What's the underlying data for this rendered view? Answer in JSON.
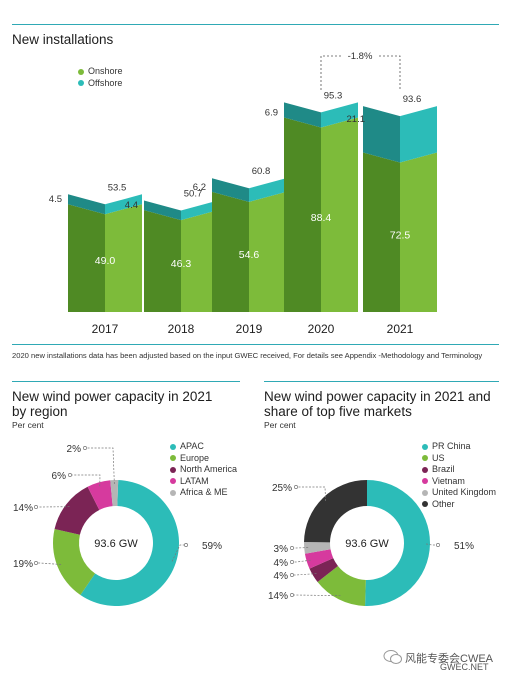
{
  "top_chart": {
    "title": "New installations",
    "legend": [
      {
        "label": "Onshore",
        "color": "#7dbb3a"
      },
      {
        "label": "Offshore",
        "color": "#2cbcb8"
      }
    ],
    "change_label": "-1.8%",
    "footnote": "2020 new installations data has been adjusted based on the input GWEC received, For details see Appendix -Methodology and Terminology"
  },
  "donut_left": {
    "title_line1": "New wind power capacity in 2021",
    "title_line2": "by region",
    "subtitle": "Per cent",
    "center_label": "93.6 GW"
  },
  "donut_right": {
    "title_line1": "New wind power capacity in 2021 and",
    "title_line2": "share of top five markets",
    "subtitle": "Per cent",
    "center_label": "93.6 GW"
  },
  "watermark": {
    "text1": "风能专委会CWEA",
    "text2": "GWEC.NET"
  },
  "chart_data": [
    {
      "type": "bar",
      "stacked": true,
      "categories": [
        "2017",
        "2018",
        "2019",
        "2020",
        "2021"
      ],
      "series": [
        {
          "name": "Onshore",
          "values": [
            49.0,
            46.3,
            54.6,
            88.4,
            72.5
          ],
          "color": "#7dbb3a"
        },
        {
          "name": "Offshore",
          "values": [
            4.5,
            4.4,
            6.2,
            6.9,
            21.1
          ],
          "color": "#2cbcb8"
        }
      ],
      "totals": [
        53.5,
        50.7,
        60.8,
        95.3,
        93.6
      ],
      "onshore_labels": [
        "49.0",
        "46.3",
        "54.6",
        "88.4",
        "72.5"
      ],
      "offshore_labels": [
        "4.5",
        "4.4",
        "6.2",
        "6.9",
        "21.1"
      ],
      "total_labels": [
        "53.5",
        "50.7",
        "60.8",
        "95.3",
        "93.6"
      ],
      "title": "New installations"
    },
    {
      "type": "pie",
      "donut": true,
      "title": "New wind power capacity in 2021 by region",
      "categories": [
        "APAC",
        "Europe",
        "North America",
        "LATAM",
        "Africa & ME"
      ],
      "values": [
        59,
        19,
        14,
        6,
        2
      ],
      "value_labels": [
        "59%",
        "19%",
        "14%",
        "6%",
        "2%"
      ],
      "colors": [
        "#2cbcb8",
        "#7dbb3a",
        "#7b2455",
        "#d63a9e",
        "#b5b5b5"
      ],
      "center_label": "93.6 GW"
    },
    {
      "type": "pie",
      "donut": true,
      "title": "New wind power capacity in 2021 and share of top five markets",
      "categories": [
        "PR China",
        "US",
        "Brazil",
        "Vietnam",
        "United Kingdom",
        "Other"
      ],
      "values": [
        51,
        14,
        4,
        4,
        3,
        25
      ],
      "value_labels": [
        "51%",
        "14%",
        "4%",
        "4%",
        "3%",
        "25%"
      ],
      "colors": [
        "#2cbcb8",
        "#7dbb3a",
        "#7b2455",
        "#d63a9e",
        "#b5b5b5",
        "#333333"
      ],
      "center_label": "93.6 GW"
    }
  ]
}
